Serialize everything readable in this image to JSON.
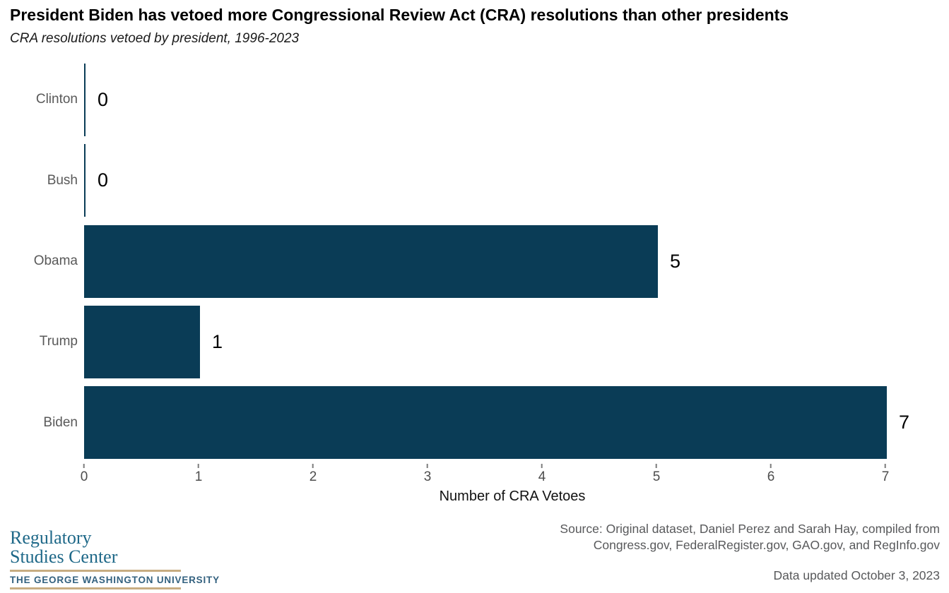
{
  "header": {
    "title": "President Biden has vetoed more Congressional Review Act (CRA) resolutions than other presidents",
    "subtitle": "CRA resolutions vetoed by president, 1996-2023"
  },
  "chart_data": {
    "type": "bar",
    "orientation": "horizontal",
    "categories": [
      "Clinton",
      "Bush",
      "Obama",
      "Trump",
      "Biden"
    ],
    "values": [
      0,
      0,
      5,
      1,
      7
    ],
    "xlabel": "Number of CRA Vetoes",
    "xlim": [
      0,
      7
    ],
    "xticks": [
      0,
      1,
      2,
      3,
      4,
      5,
      6,
      7
    ],
    "grid": "off",
    "legend": "none",
    "bar_color": "#0a3c56",
    "category_label_color": "#595959",
    "value_label_color": "#000000",
    "tick_label_color": "#4d4d4d"
  },
  "footer": {
    "logo": {
      "line1": "Regulatory",
      "line2": "Studies Center",
      "line3": "THE GEORGE WASHINGTON UNIVERSITY",
      "text_color": "#1e6888",
      "accent_color": "#c7ad82"
    },
    "source_line1": "Source: Original dataset, Daniel Perez and Sarah Hay, compiled from",
    "source_line2": "Congress.gov, FederalRegister.gov, GAO.gov, and RegInfo.gov",
    "updated": "Data updated October 3, 2023"
  }
}
